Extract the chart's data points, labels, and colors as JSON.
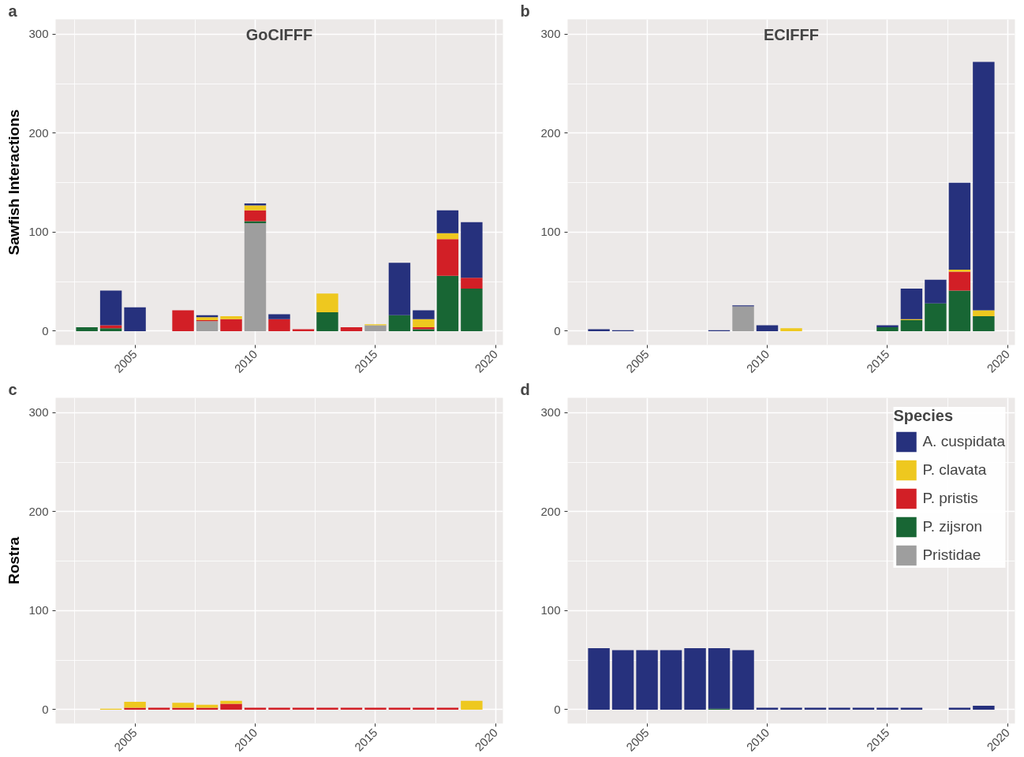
{
  "chart_data": [
    {
      "type": "bar",
      "stacked": true,
      "title": "GoCIFFF",
      "ylabel": "Sawfish Interactions",
      "annotations": [
        "a"
      ],
      "x": [
        2003,
        2004,
        2005,
        2006,
        2007,
        2008,
        2009,
        2010,
        2011,
        2012,
        2013,
        2014,
        2015,
        2016,
        2017,
        2018,
        2019
      ],
      "xlim": [
        2001.7,
        2020.3
      ],
      "xticks": [
        2005,
        2010,
        2015,
        2020
      ],
      "ylim": [
        -14,
        315
      ],
      "yticks": [
        0,
        100,
        200,
        300
      ],
      "grid": true,
      "legend": false,
      "series": [
        {
          "color": "#9e9e9e",
          "values": [
            null,
            null,
            null,
            null,
            null,
            10,
            null,
            109,
            null,
            null,
            null,
            null,
            6,
            null,
            null,
            null,
            null
          ]
        },
        {
          "color": "#186634",
          "values": [
            4,
            3,
            null,
            null,
            null,
            null,
            null,
            2,
            null,
            null,
            19,
            null,
            null,
            16,
            2,
            56,
            43
          ]
        },
        {
          "color": "#d21f26",
          "values": [
            null,
            3,
            null,
            null,
            21,
            1,
            12,
            11,
            12,
            2,
            null,
            4,
            null,
            null,
            2,
            37,
            11
          ]
        },
        {
          "color": "#eec81f",
          "values": [
            null,
            null,
            null,
            null,
            null,
            3,
            3,
            5,
            null,
            null,
            19,
            null,
            1,
            null,
            8,
            6,
            null
          ]
        },
        {
          "color": "#26317d",
          "values": [
            null,
            35,
            24,
            null,
            null,
            2,
            null,
            2,
            5,
            null,
            null,
            null,
            null,
            53,
            9,
            23,
            56
          ]
        }
      ]
    },
    {
      "type": "bar",
      "stacked": true,
      "title": "ECIFFF",
      "annotations": [
        "b"
      ],
      "x": [
        2003,
        2004,
        2005,
        2006,
        2007,
        2008,
        2009,
        2010,
        2011,
        2012,
        2013,
        2014,
        2015,
        2016,
        2017,
        2018,
        2019
      ],
      "xlim": [
        2001.7,
        2020.3
      ],
      "xticks": [
        2005,
        2010,
        2015,
        2020
      ],
      "ylim": [
        -14,
        315
      ],
      "yticks": [
        0,
        100,
        200,
        300
      ],
      "grid": true,
      "legend": false,
      "series": [
        {
          "color": "#9e9e9e",
          "values": [
            null,
            null,
            null,
            null,
            null,
            null,
            25,
            null,
            null,
            null,
            null,
            null,
            null,
            null,
            null,
            null,
            null
          ]
        },
        {
          "color": "#186634",
          "values": [
            null,
            null,
            null,
            null,
            null,
            null,
            null,
            null,
            null,
            null,
            null,
            null,
            4,
            11,
            28,
            41,
            15
          ]
        },
        {
          "color": "#d21f26",
          "values": [
            null,
            null,
            null,
            null,
            null,
            null,
            null,
            null,
            null,
            null,
            null,
            null,
            null,
            null,
            null,
            19,
            null
          ]
        },
        {
          "color": "#eec81f",
          "values": [
            null,
            null,
            null,
            null,
            null,
            null,
            null,
            null,
            3,
            null,
            null,
            null,
            null,
            1,
            null,
            2,
            6
          ]
        },
        {
          "color": "#26317d",
          "values": [
            2,
            1,
            null,
            null,
            null,
            1,
            1,
            6,
            null,
            null,
            null,
            null,
            2,
            31,
            24,
            88,
            251
          ]
        }
      ]
    },
    {
      "type": "bar",
      "stacked": true,
      "ylabel": "Rostra",
      "annotations": [
        "c"
      ],
      "x": [
        2004,
        2005,
        2006,
        2007,
        2008,
        2009,
        2010,
        2011,
        2012,
        2013,
        2014,
        2015,
        2016,
        2017,
        2018,
        2019
      ],
      "xlim": [
        2001.7,
        2020.3
      ],
      "xticks": [
        2005,
        2010,
        2015,
        2020
      ],
      "ylim": [
        -14,
        315
      ],
      "yticks": [
        0,
        100,
        200,
        300
      ],
      "grid": true,
      "legend": false,
      "series": [
        {
          "color": "#d21f26",
          "values": [
            null,
            2,
            2,
            2,
            2,
            6,
            2,
            2,
            2,
            2,
            2,
            2,
            2,
            2,
            2,
            null
          ]
        },
        {
          "color": "#eec81f",
          "values": [
            1,
            6,
            null,
            5,
            3,
            3,
            null,
            null,
            null,
            null,
            null,
            null,
            null,
            null,
            null,
            9
          ]
        }
      ]
    },
    {
      "type": "bar",
      "stacked": true,
      "annotations": [
        "d"
      ],
      "legend_title": "Species",
      "x": [
        2003,
        2004,
        2005,
        2006,
        2007,
        2008,
        2009,
        2010,
        2011,
        2012,
        2013,
        2014,
        2015,
        2016,
        2017,
        2018,
        2019
      ],
      "xlim": [
        2001.7,
        2020.3
      ],
      "xticks": [
        2005,
        2010,
        2015,
        2020
      ],
      "ylim": [
        -14,
        315
      ],
      "yticks": [
        0,
        100,
        200,
        300
      ],
      "grid": true,
      "legend": "top right",
      "series": [
        {
          "name": "Pristidae",
          "color": "#9e9e9e",
          "values": [
            null,
            null,
            null,
            null,
            null,
            null,
            null,
            null,
            null,
            null,
            null,
            null,
            null,
            null,
            null,
            null,
            null
          ]
        },
        {
          "name": "P. zijsron",
          "color": "#186634",
          "values": [
            null,
            null,
            null,
            null,
            null,
            1,
            null,
            null,
            null,
            null,
            null,
            null,
            null,
            null,
            null,
            null,
            null
          ]
        },
        {
          "name": "P. pristis",
          "color": "#d21f26",
          "values": [
            null,
            null,
            null,
            null,
            null,
            null,
            null,
            null,
            null,
            null,
            null,
            null,
            null,
            null,
            null,
            null,
            null
          ]
        },
        {
          "name": "P. clavata",
          "color": "#eec81f",
          "values": [
            null,
            null,
            null,
            null,
            null,
            null,
            null,
            null,
            null,
            null,
            null,
            null,
            null,
            null,
            null,
            null,
            null
          ]
        },
        {
          "name": "A. cuspidata",
          "color": "#26317d",
          "values": [
            62,
            60,
            60,
            60,
            62,
            61,
            60,
            2,
            2,
            2,
            2,
            2,
            2,
            2,
            null,
            2,
            4
          ]
        }
      ]
    }
  ]
}
